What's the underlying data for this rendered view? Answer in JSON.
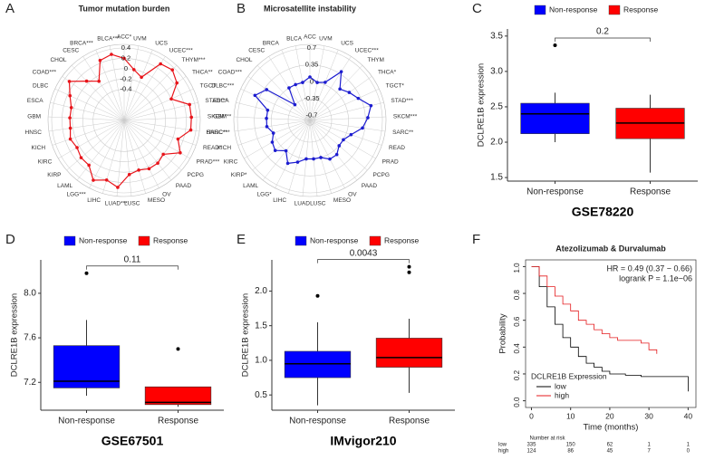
{
  "chart_data": [
    {
      "panel": "A",
      "type": "radar",
      "title": "Tumor mutation burden",
      "color": "#e8141a",
      "categories": [
        "ACC*",
        "UVM",
        "UCS",
        "UCEC***",
        "THYM***",
        "THCA**",
        "TGCT",
        "STAD***",
        "SKCM***",
        "SARC***",
        "READ*",
        "PRAD***",
        "PCPG",
        "PAAD",
        "OV",
        "MESO",
        "LUSC",
        "LUAD***",
        "LIHC",
        "LGG***",
        "LAML",
        "KIRP",
        "KIRC",
        "KICH",
        "HNSC",
        "GBM",
        "ESCA",
        "DLBC",
        "COAD***",
        "CHOL",
        "CESC",
        "BRCA***",
        "BLCA***"
      ],
      "values": [
        0.2,
        0.0,
        -0.1,
        0.3,
        0.35,
        0.25,
        0.0,
        0.3,
        0.3,
        0.3,
        0.1,
        0.25,
        0.0,
        0.05,
        0.05,
        0.0,
        0.05,
        0.3,
        0.2,
        0.3,
        0.1,
        0.1,
        0.05,
        0.1,
        0.05,
        0.05,
        0.05,
        0.15,
        0.3,
        0.05,
        -0.1,
        0.25,
        0.3
      ],
      "rlim": [
        -1,
        0.4
      ],
      "rticks": [
        -0.4,
        -0.2,
        0,
        0.2,
        0.4
      ]
    },
    {
      "panel": "B",
      "type": "radar",
      "title": "Microsatellite instability",
      "color": "#1c1cd0",
      "categories": [
        "ACC",
        "UVM",
        "UCS",
        "UCEC***",
        "THYM",
        "THCA*",
        "TGCT*",
        "STAD***",
        "SKCM***",
        "SARC**",
        "READ",
        "PRAD",
        "PCPG",
        "PAAD",
        "OV",
        "MESO",
        "LUSC",
        "LUAD",
        "LIHC",
        "LGG*",
        "LAML",
        "KIRP*",
        "KIRC",
        "KICH",
        "HNSC**",
        "GBM",
        "ESCA",
        "DLBC***",
        "COAD***",
        "CHOL",
        "CESC",
        "BRCA",
        "BLCA"
      ],
      "values": [
        0.1,
        0.0,
        0.05,
        0.4,
        0.1,
        0.2,
        0.3,
        0.5,
        0.4,
        0.3,
        0.1,
        0.0,
        0.0,
        0.1,
        0.1,
        0.0,
        0.0,
        0.0,
        0.1,
        0.2,
        0.0,
        0.15,
        0.1,
        0.0,
        0.1,
        0.1,
        0.1,
        0.45,
        0.3,
        -0.35,
        0.0,
        0.0,
        0.0
      ],
      "rlim": [
        -0.8,
        0.7
      ],
      "rticks": [
        -0.7,
        -0.35,
        0,
        0.35,
        0.7
      ]
    },
    {
      "panel": "C",
      "type": "box",
      "title": "GSE78220",
      "ylabel": "DCLRE1B expression",
      "pvalue": "0.2",
      "groups": [
        {
          "name": "Non-response",
          "color": "#0000ff",
          "stats": [
            2.0,
            2.12,
            2.4,
            2.55,
            2.7
          ],
          "outliers": [
            3.37
          ]
        },
        {
          "name": "Response",
          "color": "#ff0000",
          "stats": [
            1.57,
            2.05,
            2.27,
            2.48,
            2.67
          ],
          "outliers": []
        }
      ],
      "ylim": [
        1.45,
        3.6
      ],
      "yticks": [
        1.5,
        {
          "value": 2,
          "label": "2.0"
        },
        2.5,
        {
          "value": 3,
          "label": "3.0"
        },
        3.5
      ]
    },
    {
      "panel": "D",
      "type": "box",
      "title": "GSE67501",
      "ylabel": "DCLRE1B expression",
      "pvalue": "0.11",
      "groups": [
        {
          "name": "Non-response",
          "color": "#0000ff",
          "stats": [
            7.08,
            7.15,
            7.21,
            7.53,
            7.76
          ],
          "outliers": [
            8.18
          ]
        },
        {
          "name": "Response",
          "color": "#ff0000",
          "stats": [
            6.98,
            7.0,
            7.02,
            7.16,
            7.16
          ],
          "outliers": [
            7.5
          ]
        }
      ],
      "ylim": [
        6.95,
        8.3
      ],
      "yticks": [
        7.2,
        7.6,
        {
          "value": 8,
          "label": "8.0"
        }
      ]
    },
    {
      "panel": "E",
      "type": "box",
      "title": "IMvigor210",
      "ylabel": "DCLRE1B expression",
      "pvalue": "0.0043",
      "groups": [
        {
          "name": "Non-response",
          "color": "#0000ff",
          "stats": [
            0.35,
            0.75,
            0.95,
            1.13,
            1.55
          ],
          "outliers": [
            1.93
          ]
        },
        {
          "name": "Response",
          "color": "#ff0000",
          "stats": [
            0.53,
            0.9,
            1.04,
            1.32,
            1.6
          ],
          "outliers": [
            2.27,
            2.35
          ]
        }
      ],
      "ylim": [
        0.28,
        2.45
      ],
      "yticks": [
        0.5,
        {
          "value": 1,
          "label": "1.0"
        },
        1.5,
        {
          "value": 2,
          "label": "2.0"
        }
      ]
    },
    {
      "panel": "F",
      "type": "km",
      "title": "Atezolizumab & Durvalumab",
      "xlabel": "Time (months)",
      "ylabel": "Probability",
      "annotations": [
        "HR = 0.49 (0.37 − 0.66)",
        "logrank P = 1.1e−06"
      ],
      "legend_title": "DCLRE1B Expression",
      "series": [
        {
          "name": "low",
          "color": "#000000",
          "x": [
            0,
            2,
            4,
            6,
            8,
            10,
            12,
            14,
            16,
            18,
            20,
            24,
            28,
            32,
            40
          ],
          "values": [
            1,
            0.85,
            0.7,
            0.57,
            0.47,
            0.4,
            0.33,
            0.28,
            0.25,
            0.22,
            0.2,
            0.19,
            0.18,
            0.18,
            0.07
          ]
        },
        {
          "name": "high",
          "color": "#e41a1c",
          "x": [
            0,
            2,
            4,
            6,
            8,
            10,
            12,
            14,
            16,
            18,
            20,
            22,
            26,
            28,
            30,
            32
          ],
          "values": [
            1,
            0.93,
            0.85,
            0.78,
            0.72,
            0.67,
            0.6,
            0.57,
            0.53,
            0.5,
            0.47,
            0.45,
            0.45,
            0.43,
            0.38,
            0.35
          ]
        }
      ],
      "xlim": [
        -1.5,
        42
      ],
      "ylim": [
        -0.05,
        1.05
      ],
      "xticks": [
        0,
        10,
        20,
        30,
        40
      ],
      "yticks": [
        {
          "value": 0,
          "label": "0.0"
        },
        0.2,
        0.4,
        0.6,
        0.8,
        {
          "value": 1,
          "label": "1.0"
        }
      ],
      "risk_table": {
        "title": "Number at risk",
        "rows": [
          {
            "name": "low",
            "color": "#000000",
            "values": [
              335,
              150,
              62,
              1,
              1
            ]
          },
          {
            "name": "high",
            "color": "#e41a1c",
            "values": [
              124,
              86,
              45,
              7,
              0
            ]
          }
        ]
      }
    }
  ]
}
